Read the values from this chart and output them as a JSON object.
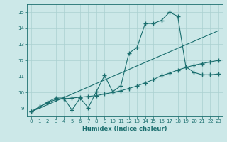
{
  "xlabel": "Humidex (Indice chaleur)",
  "bg_color": "#cce8e8",
  "grid_color": "#aad0d0",
  "line_color": "#1a6e6e",
  "xlim": [
    -0.5,
    23.5
  ],
  "ylim": [
    8.5,
    15.5
  ],
  "xticks": [
    0,
    1,
    2,
    3,
    4,
    5,
    6,
    7,
    8,
    9,
    10,
    11,
    12,
    13,
    14,
    15,
    16,
    17,
    18,
    19,
    20,
    21,
    22,
    23
  ],
  "yticks": [
    9,
    10,
    11,
    12,
    13,
    14,
    15
  ],
  "line1_x": [
    0,
    1,
    2,
    3,
    4,
    5,
    6,
    7,
    8,
    9,
    10,
    11,
    12,
    13,
    14,
    15,
    16,
    17,
    18,
    19,
    20,
    21,
    22,
    23
  ],
  "line1_y": [
    8.8,
    9.1,
    9.4,
    9.65,
    9.65,
    8.9,
    9.65,
    9.05,
    10.05,
    11.05,
    10.05,
    10.4,
    12.45,
    12.8,
    14.3,
    14.3,
    14.5,
    15.0,
    14.75,
    11.6,
    11.25,
    11.1,
    11.1,
    11.15
  ],
  "line2_x": [
    0,
    1,
    2,
    3,
    4,
    5,
    6,
    7,
    8,
    9,
    10,
    11,
    12,
    13,
    14,
    15,
    16,
    17,
    18,
    19,
    20,
    21,
    22,
    23
  ],
  "line2_y": [
    8.8,
    9.1,
    9.35,
    9.55,
    9.6,
    9.65,
    9.7,
    9.75,
    9.8,
    9.9,
    10.0,
    10.1,
    10.25,
    10.4,
    10.6,
    10.8,
    11.05,
    11.2,
    11.4,
    11.55,
    11.7,
    11.8,
    11.9,
    12.0
  ],
  "line3_x": [
    0,
    23
  ],
  "line3_y": [
    8.8,
    13.85
  ],
  "marker": "+",
  "marker_size": 4,
  "linewidth": 0.8
}
